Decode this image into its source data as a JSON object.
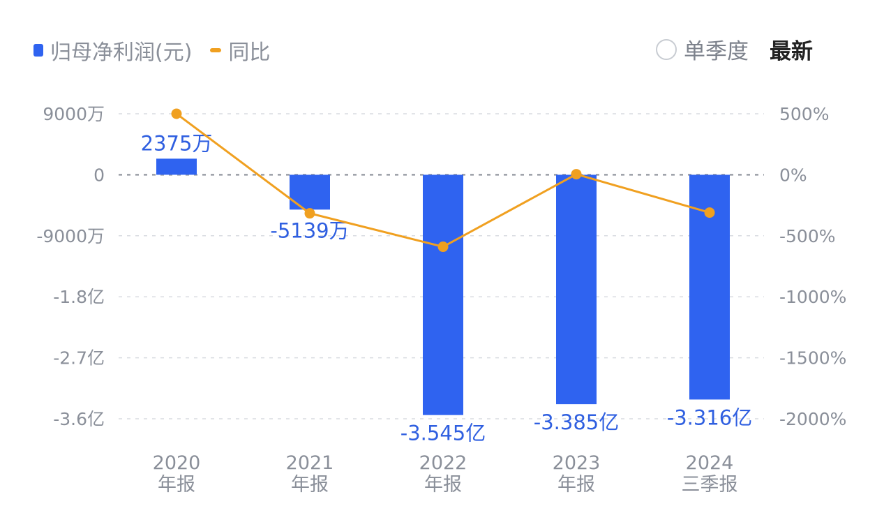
{
  "legend": {
    "bar_label": "归母净利润(元)",
    "line_label": "同比"
  },
  "controls": {
    "season_label": "单季度",
    "latest_label": "最新"
  },
  "colors": {
    "bar": "#2f63f0",
    "line": "#f0a020",
    "axis_text": "#8a8f99",
    "grid": "#d8dbe0"
  },
  "chart_data": {
    "type": "bar+line",
    "categories": [
      [
        "2020",
        "年报"
      ],
      [
        "2021",
        "年报"
      ],
      [
        "2022",
        "年报"
      ],
      [
        "2023",
        "年报"
      ],
      [
        "2024",
        "三季报"
      ]
    ],
    "series": [
      {
        "name": "归母净利润(元)",
        "type": "bar",
        "axis": "left",
        "unit": "万",
        "values": [
          2375,
          -5139,
          -35450,
          -33850,
          -33160
        ],
        "labels": [
          "2375万",
          "-5139万",
          "-3.545亿",
          "-3.385亿",
          "-3.316亿"
        ]
      },
      {
        "name": "同比",
        "type": "line",
        "axis": "right",
        "unit": "%",
        "values": [
          500,
          -316,
          -590,
          4.5,
          -310
        ]
      }
    ],
    "left_axis": {
      "ticks": [
        9000,
        0,
        -9000,
        -18000,
        -27000,
        -36000
      ],
      "tick_labels": [
        "9000万",
        "0",
        "-9000万",
        "-1.8亿",
        "-2.7亿",
        "-3.6亿"
      ],
      "range": [
        -36000,
        9000
      ]
    },
    "right_axis": {
      "ticks": [
        500,
        0,
        -500,
        -1000,
        -1500,
        -2000
      ],
      "tick_labels": [
        "500%",
        "0%",
        "-500%",
        "-1000%",
        "-1500%",
        "-2000%"
      ],
      "range": [
        -2000,
        500
      ]
    },
    "grid": true,
    "legend_position": "top-left"
  }
}
